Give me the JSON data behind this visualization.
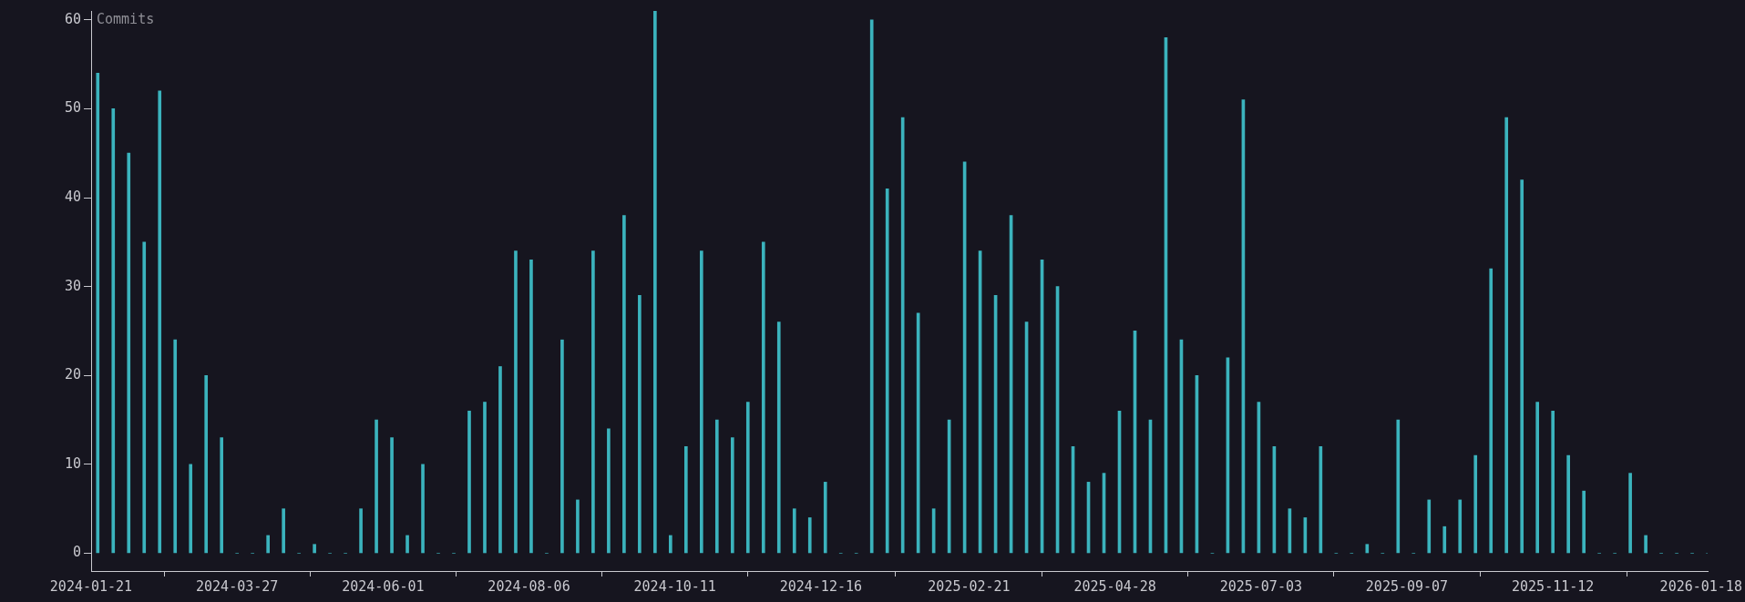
{
  "chart_data": {
    "type": "bar",
    "ylabel": "Commits",
    "color": "#3bb3bd",
    "x": [
      "2024-01-24",
      "2024-01-31",
      "2024-02-07",
      "2024-02-14",
      "2024-02-21",
      "2024-02-28",
      "2024-03-06",
      "2024-03-13",
      "2024-03-20",
      "2024-03-27",
      "2024-04-03",
      "2024-04-10",
      "2024-04-17",
      "2024-04-24",
      "2024-05-01",
      "2024-05-08",
      "2024-05-15",
      "2024-05-22",
      "2024-05-29",
      "2024-06-05",
      "2024-06-12",
      "2024-06-19",
      "2024-06-26",
      "2024-07-03",
      "2024-07-10",
      "2024-07-17",
      "2024-07-24",
      "2024-07-31",
      "2024-08-07",
      "2024-08-14",
      "2024-08-21",
      "2024-08-28",
      "2024-09-04",
      "2024-09-11",
      "2024-09-18",
      "2024-09-25",
      "2024-10-02",
      "2024-10-09",
      "2024-10-16",
      "2024-10-23",
      "2024-10-30",
      "2024-11-06",
      "2024-11-13",
      "2024-11-20",
      "2024-11-27",
      "2024-12-04",
      "2024-12-11",
      "2024-12-18",
      "2024-12-25",
      "2025-01-01",
      "2025-01-08",
      "2025-01-15",
      "2025-01-22",
      "2025-01-29",
      "2025-02-05",
      "2025-02-12",
      "2025-02-19",
      "2025-02-26",
      "2025-03-05",
      "2025-03-12",
      "2025-03-19",
      "2025-03-26",
      "2025-04-02",
      "2025-04-09",
      "2025-04-16",
      "2025-04-23",
      "2025-04-30",
      "2025-05-07",
      "2025-05-14",
      "2025-05-21",
      "2025-05-28",
      "2025-06-04",
      "2025-06-11",
      "2025-06-18",
      "2025-06-25",
      "2025-07-02",
      "2025-07-09",
      "2025-07-16",
      "2025-07-23",
      "2025-07-30",
      "2025-08-06",
      "2025-08-13",
      "2025-08-20",
      "2025-08-27",
      "2025-09-03",
      "2025-09-10",
      "2025-09-17",
      "2025-09-24",
      "2025-10-01",
      "2025-10-08",
      "2025-10-15",
      "2025-10-22",
      "2025-10-29",
      "2025-11-05",
      "2025-11-12",
      "2025-11-19",
      "2025-11-26",
      "2025-12-03",
      "2025-12-10",
      "2025-12-17",
      "2025-12-24",
      "2025-12-31",
      "2026-01-07",
      "2026-01-14",
      "2026-01-21"
    ],
    "values": [
      54,
      50,
      45,
      35,
      52,
      24,
      10,
      20,
      13,
      0,
      0,
      2,
      5,
      0,
      1,
      0,
      0,
      5,
      15,
      13,
      2,
      10,
      0,
      0,
      16,
      17,
      21,
      34,
      33,
      0,
      24,
      6,
      34,
      14,
      38,
      29,
      61,
      2,
      12,
      34,
      15,
      13,
      17,
      35,
      26,
      5,
      4,
      8,
      0,
      0,
      60,
      41,
      49,
      27,
      5,
      15,
      44,
      34,
      29,
      38,
      26,
      33,
      30,
      12,
      8,
      9,
      16,
      25,
      15,
      58,
      24,
      20,
      0,
      22,
      51,
      17,
      12,
      5,
      4,
      12,
      0,
      0,
      1,
      0,
      15,
      0,
      6,
      3,
      6,
      11,
      32,
      49,
      42,
      17,
      16,
      11,
      7,
      0,
      0,
      9,
      2,
      0,
      0,
      0,
      0
    ],
    "xlim": [
      "2024-01-21",
      "2026-01-21"
    ],
    "xticks": [
      "2024-01-21",
      "2024-03-27",
      "2024-06-01",
      "2024-08-06",
      "2024-10-11",
      "2024-12-16",
      "2025-02-21",
      "2025-04-28",
      "2025-07-03",
      "2025-09-07",
      "2025-11-12",
      "2026-01-18"
    ],
    "ylim": [
      -2,
      61
    ],
    "yticks": [
      0,
      10,
      20,
      30,
      40,
      50,
      60
    ]
  }
}
